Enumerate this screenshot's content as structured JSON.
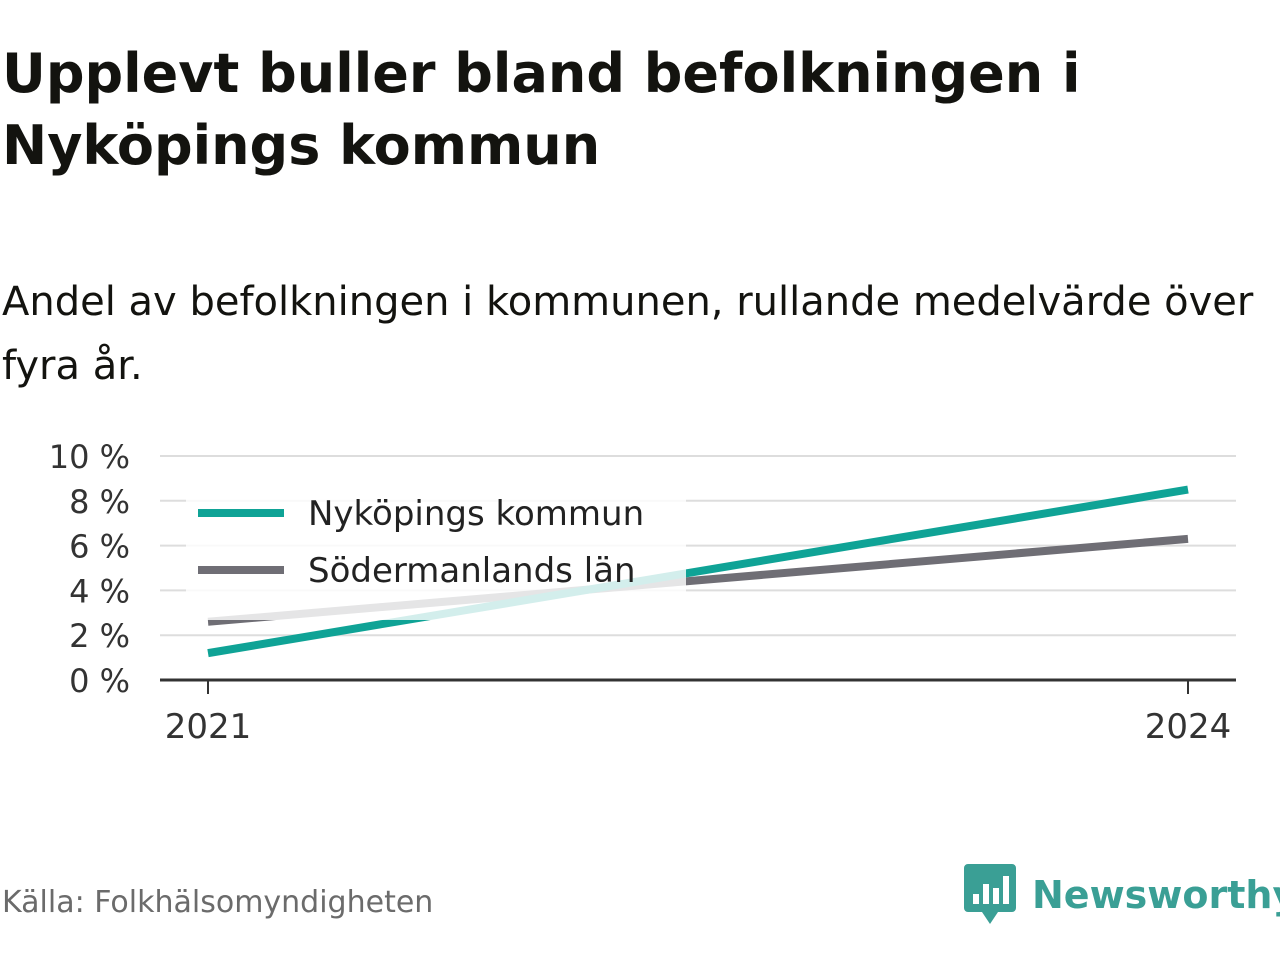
{
  "header": {
    "title": "Upplevt buller bland befolkningen i Nyköpings kommun",
    "subtitle": "Andel av befolkningen i kommunen, rullande medelvärde över fyra år."
  },
  "footer": {
    "source": "Källa: Folkhälsomyndigheten",
    "brand": "Newsworthy"
  },
  "colors": {
    "nykoping": "#0fa396",
    "sodermanland": "#6f6e75",
    "grid": "#dddddd",
    "axis": "#333333",
    "brand": "#3a9f95"
  },
  "chart_data": {
    "type": "line",
    "x": [
      2021,
      2024
    ],
    "xticks": [
      "2021",
      "2024"
    ],
    "ylim": [
      0,
      10
    ],
    "yticks": [
      "0 %",
      "2 %",
      "4 %",
      "6 %",
      "8 %",
      "10 %"
    ],
    "ytick_values": [
      0,
      2,
      4,
      6,
      8,
      10
    ],
    "grid": true,
    "legend_position": "top-left",
    "series": [
      {
        "name": "Nyköpings kommun",
        "values": [
          1.2,
          8.5
        ]
      },
      {
        "name": "Södermanlands län",
        "values": [
          2.6,
          6.3
        ]
      }
    ],
    "title": "",
    "xlabel": "",
    "ylabel": ""
  }
}
